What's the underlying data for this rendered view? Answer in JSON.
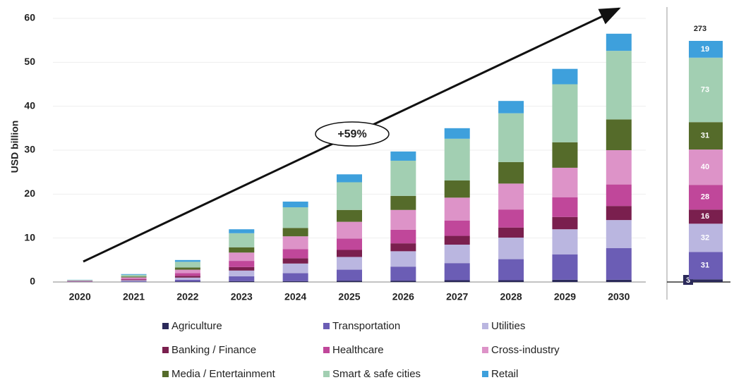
{
  "chart_data": [
    {
      "type": "stacked-bar",
      "y_label": "USD billion",
      "annotation": "+59%",
      "categories": [
        "2020",
        "2021",
        "2022",
        "2023",
        "2024",
        "2025",
        "2026",
        "2027",
        "2028",
        "2029",
        "2030"
      ],
      "ylim": [
        0,
        60
      ],
      "yticks": [
        0,
        10,
        20,
        30,
        40,
        50,
        60
      ],
      "grid": true,
      "series": [
        {
          "name": "Agriculture",
          "color": "#2b2a5a",
          "values": [
            0.02,
            0.05,
            0.1,
            0.2,
            0.2,
            0.3,
            0.3,
            0.4,
            0.4,
            0.5,
            0.5
          ]
        },
        {
          "name": "Transportation",
          "color": "#6b5db5",
          "values": [
            0.05,
            0.15,
            0.4,
            1.1,
            1.8,
            2.5,
            3.2,
            3.9,
            4.8,
            5.8,
            7.2
          ]
        },
        {
          "name": "Utilities",
          "color": "#bab6e0",
          "values": [
            0.05,
            0.2,
            0.5,
            1.3,
            2.2,
            2.9,
            3.5,
            4.2,
            4.9,
            5.7,
            6.4
          ]
        },
        {
          "name": "Banking / Finance",
          "color": "#7a1f4e",
          "values": [
            0.04,
            0.15,
            0.4,
            0.8,
            1.2,
            1.6,
            1.8,
            2.0,
            2.3,
            2.8,
            3.2
          ]
        },
        {
          "name": "Healthcare",
          "color": "#c0479a",
          "values": [
            0.06,
            0.2,
            0.6,
            1.4,
            2.1,
            2.6,
            3.1,
            3.5,
            4.1,
            4.5,
            4.9
          ]
        },
        {
          "name": "Cross-industry",
          "color": "#dd93c8",
          "values": [
            0.08,
            0.3,
            0.8,
            1.9,
            2.9,
            3.8,
            4.5,
            5.2,
            5.9,
            6.7,
            7.8
          ]
        },
        {
          "name": "Media / Entertainment",
          "color": "#556b2a",
          "values": [
            0.05,
            0.2,
            0.5,
            1.2,
            1.9,
            2.7,
            3.2,
            3.9,
            4.9,
            5.8,
            7.0
          ]
        },
        {
          "name": "Smart & safe cities",
          "color": "#a2cfb2",
          "values": [
            0.1,
            0.4,
            1.3,
            3.2,
            4.7,
            6.3,
            8.0,
            9.5,
            11.1,
            13.2,
            15.6
          ]
        },
        {
          "name": "Retail",
          "color": "#3ea0dc",
          "values": [
            0.05,
            0.15,
            0.4,
            0.9,
            1.3,
            1.8,
            2.1,
            2.4,
            2.8,
            3.5,
            3.9
          ]
        }
      ]
    },
    {
      "type": "total-bar",
      "total": 273,
      "values": [
        3,
        31,
        32,
        16,
        28,
        40,
        31,
        73,
        19
      ]
    }
  ]
}
